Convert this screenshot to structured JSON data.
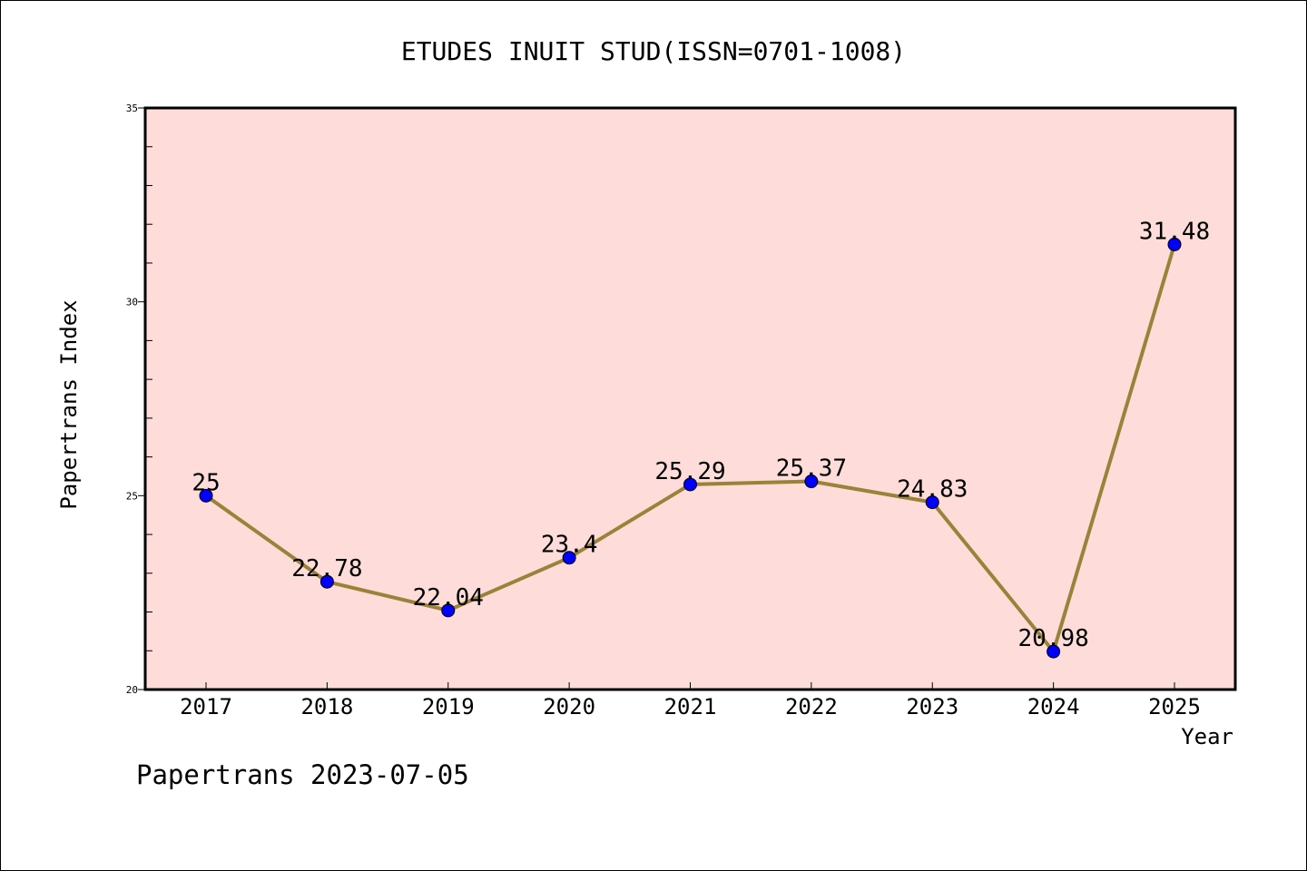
{
  "chart_data": {
    "type": "line",
    "title": "ETUDES INUIT STUD(ISSN=0701-1008)",
    "xlabel": "Year",
    "ylabel": "Papertrans Index",
    "categories": [
      "2017",
      "2018",
      "2019",
      "2020",
      "2021",
      "2022",
      "2023",
      "2024",
      "2025"
    ],
    "series": [
      {
        "values": [
          25,
          22.78,
          22.04,
          23.4,
          25.29,
          25.37,
          24.83,
          20.98,
          31.48
        ],
        "labels": [
          "25",
          "22.78",
          "22.04",
          "23.4",
          "25.29",
          "25.37",
          "24.83",
          "20.98",
          "31.48"
        ]
      }
    ],
    "ylim": [
      20,
      35
    ],
    "yticks": [
      "20",
      "25",
      "30",
      "35"
    ],
    "grid": false,
    "colors": {
      "plot_background": "#fddcd9",
      "line": "#9a8238",
      "marker": "#0000ff"
    }
  },
  "footer": {
    "text": "Papertrans 2023-07-05"
  }
}
